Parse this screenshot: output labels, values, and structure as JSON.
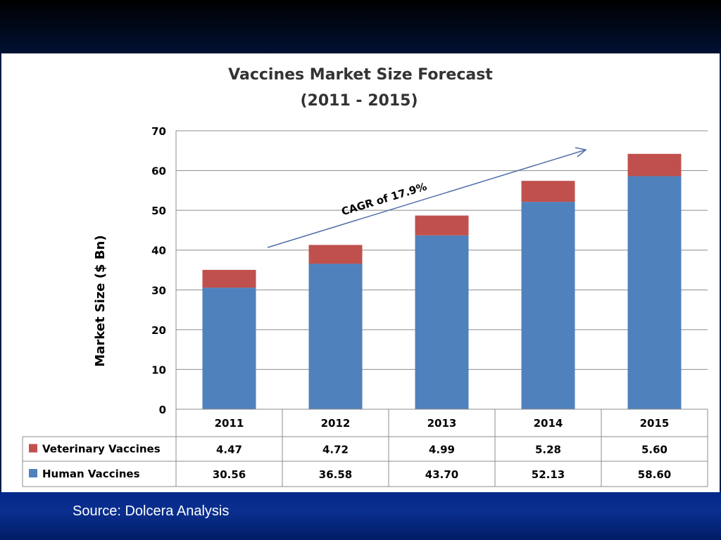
{
  "chart_data": {
    "type": "bar",
    "stacked": true,
    "title": "Vaccines Market Size Forecast",
    "subtitle": "(2011 - 2015)",
    "xlabel": "",
    "ylabel": "Market Size ($ Bn)",
    "ylim": [
      0,
      70
    ],
    "yticks": [
      0,
      10,
      20,
      30,
      40,
      50,
      60,
      70
    ],
    "categories": [
      "2011",
      "2012",
      "2013",
      "2014",
      "2015"
    ],
    "series": [
      {
        "name": "Human Vaccines",
        "color": "#4f81bd",
        "values": [
          30.56,
          36.58,
          43.7,
          52.13,
          58.6
        ],
        "labels": [
          "30.56",
          "36.58",
          "43.70",
          "52.13",
          "58.60"
        ]
      },
      {
        "name": "Veterinary Vaccines",
        "color": "#c0504d",
        "values": [
          4.47,
          4.72,
          4.99,
          5.28,
          5.6
        ],
        "labels": [
          "4.47",
          "4.72",
          "4.99",
          "5.28",
          "5.60"
        ]
      }
    ],
    "annotation": "CAGR of 17.9%",
    "grid": true,
    "legend": "data-table"
  },
  "footer": {
    "source": "Source: Dolcera Analysis"
  }
}
